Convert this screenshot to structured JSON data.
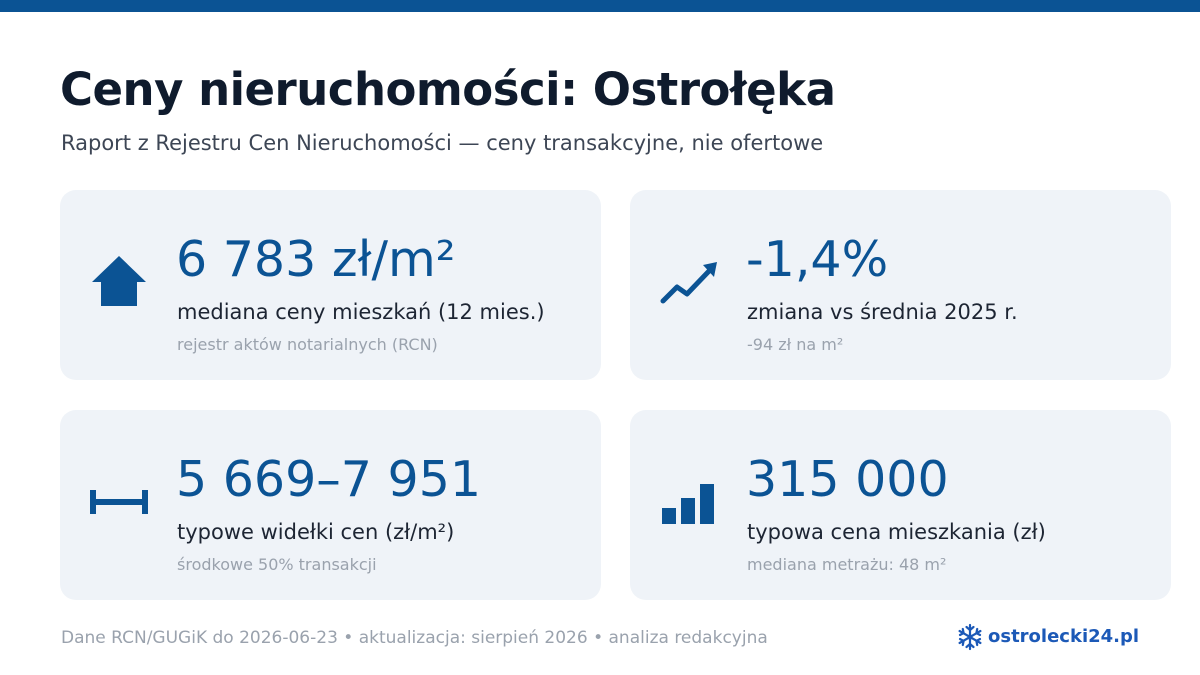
{
  "header": {
    "title": "Ceny nieruchomości: Ostrołęka",
    "subtitle": "Raport z Rejestru Cen Nieruchomości — ceny transakcyjne, nie ofertowe"
  },
  "cards": [
    {
      "icon": "house-icon",
      "value": "6 783 zł/m²",
      "label": "mediana ceny mieszkań (12 mies.)",
      "note": "rejestr aktów notarialnych (RCN)"
    },
    {
      "icon": "trend-up-icon",
      "value": "-1,4%",
      "label": "zmiana vs średnia 2025 r.",
      "note": "-94 zł na m²"
    },
    {
      "icon": "range-icon",
      "value": "5 669–7 951",
      "label": "typowe widełki cen (zł/m²)",
      "note": "środkowe 50% transakcji"
    },
    {
      "icon": "bar-chart-icon",
      "value": "315 000",
      "label": "typowa cena mieszkania (zł)",
      "note": "mediana metrażu: 48 m²"
    }
  ],
  "footer": {
    "source": "Dane RCN/GUGiK do 2026-06-23 • aktualizacja: sierpień 2026 • analiza redakcyjna"
  },
  "brand": {
    "icon": "snowflake-logo-icon",
    "name": "ostrolecki24.pl"
  },
  "colors": {
    "accent": "#0b5394",
    "card_background": "#eff3f8",
    "brand": "#1c59b7"
  }
}
